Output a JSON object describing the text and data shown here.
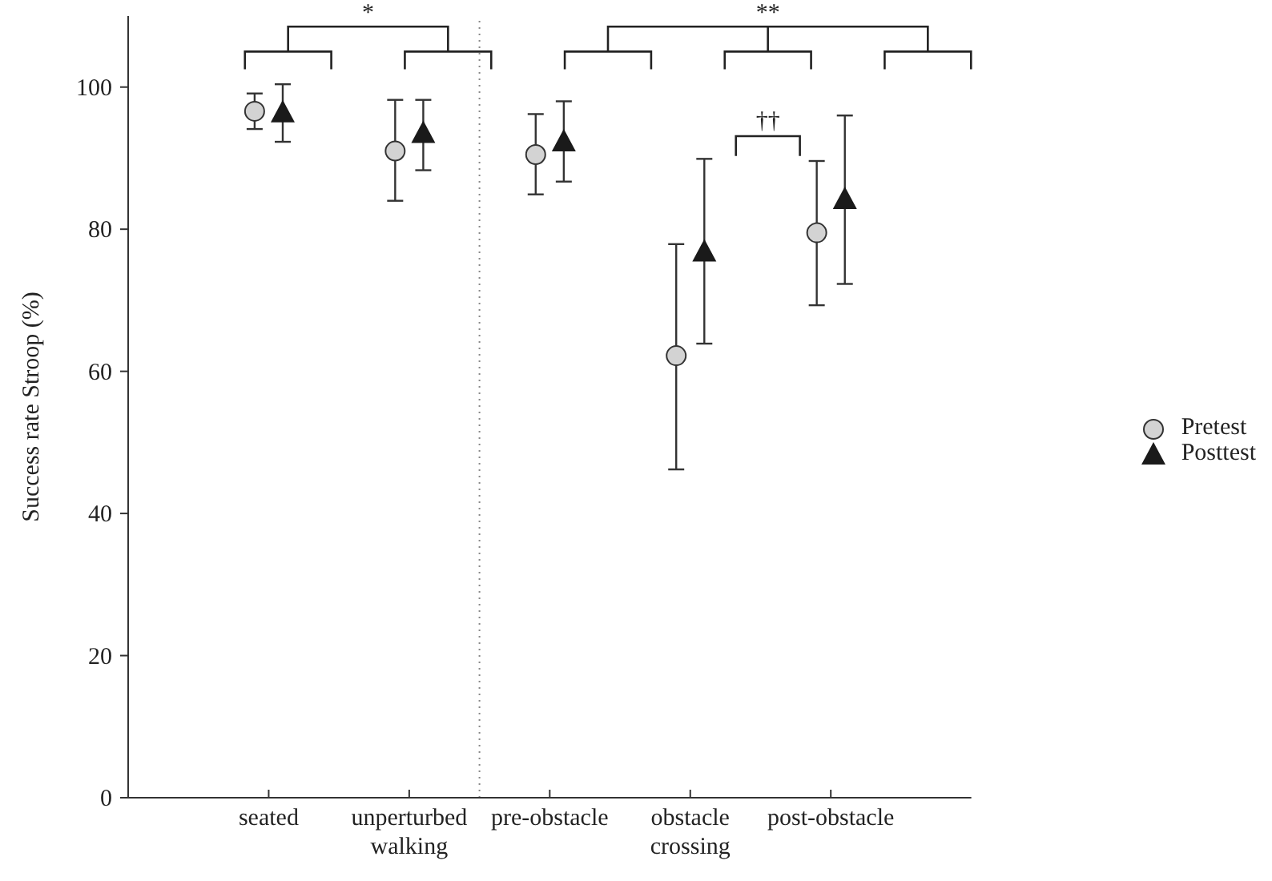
{
  "chart_data": {
    "type": "scatter",
    "ylabel": "Success rate Stroop (%)",
    "categories": [
      "seated",
      "unperturbed walking",
      "pre-obstacle",
      "obstacle crossing",
      "post-obstacle"
    ],
    "ylim": [
      0,
      110
    ],
    "yticks": [
      0,
      20,
      40,
      60,
      80,
      100
    ],
    "series": [
      {
        "name": "Pretest",
        "color": "#d3d3d3",
        "marker": "circle",
        "values": [
          96.6,
          91,
          90.5,
          62.2,
          79.5
        ],
        "errors": [
          [
            94.1,
            99.1
          ],
          [
            84,
            98.2
          ],
          [
            84.9,
            96.2
          ],
          [
            46.2,
            77.9
          ],
          [
            69.3,
            89.6
          ]
        ]
      },
      {
        "name": "Posttest",
        "color": "#1a1a1a",
        "marker": "triangle",
        "values": [
          96.4,
          93.5,
          92.3,
          76.8,
          84.2
        ],
        "errors": [
          [
            92.3,
            100.4
          ],
          [
            88.3,
            98.2
          ],
          [
            86.7,
            98
          ],
          [
            63.9,
            89.9
          ],
          [
            72.3,
            96
          ]
        ]
      }
    ],
    "annotations": [
      "*",
      "**",
      "††"
    ],
    "legend": "right"
  }
}
